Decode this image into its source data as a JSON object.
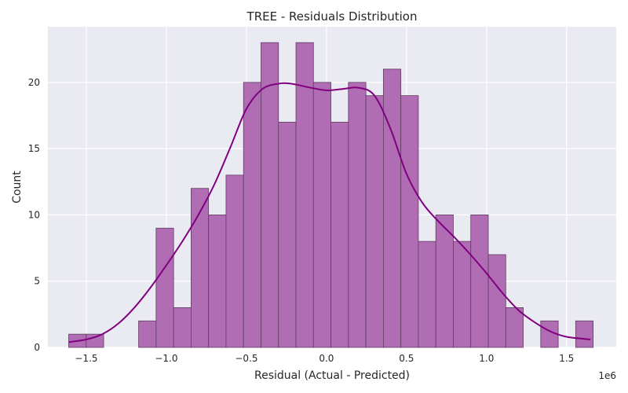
{
  "chart_data": {
    "type": "bar",
    "title": "TREE - Residuals Distribution",
    "xlabel": "Residual (Actual - Predicted)",
    "ylabel": "Count",
    "x_offset_label": "1e6",
    "xlim": [
      -1.74,
      1.81
    ],
    "ylim": [
      0,
      24.2
    ],
    "xticks": [
      -1.5,
      -1.0,
      -0.5,
      0.0,
      0.5,
      1.0,
      1.5
    ],
    "xtick_labels": [
      "−1.5",
      "−1.0",
      "−0.5",
      "0.0",
      "0.5",
      "1.0",
      "1.5"
    ],
    "yticks": [
      0,
      5,
      10,
      15,
      20
    ],
    "ytick_labels": [
      "0",
      "5",
      "10",
      "15",
      "20"
    ],
    "grid": true,
    "background": "#EAEAF2",
    "bar_color": "#B06DB3",
    "bar_edge": "#5E3E60",
    "kde_color": "#800080",
    "bin_start": -1.61,
    "bin_width": 0.1092,
    "counts": [
      1,
      1,
      0,
      0,
      2,
      9,
      3,
      12,
      10,
      13,
      20,
      23,
      17,
      23,
      20,
      17,
      20,
      19,
      21,
      19,
      8,
      10,
      8,
      10,
      7,
      3,
      0,
      2,
      0,
      2
    ],
    "kde": {
      "x": [
        -1.61,
        -1.5,
        -1.4,
        -1.3,
        -1.2,
        -1.1,
        -1.0,
        -0.9,
        -0.8,
        -0.7,
        -0.6,
        -0.5,
        -0.4,
        -0.3,
        -0.22,
        -0.1,
        0.0,
        0.1,
        0.2,
        0.3,
        0.4,
        0.5,
        0.6,
        0.7,
        0.8,
        0.9,
        1.0,
        1.1,
        1.2,
        1.3,
        1.4,
        1.5,
        1.65
      ],
      "y": [
        0.4,
        0.6,
        1.0,
        1.8,
        3.0,
        4.5,
        6.2,
        8.0,
        10.0,
        12.3,
        15.1,
        18.0,
        19.5,
        19.9,
        19.9,
        19.6,
        19.4,
        19.5,
        19.6,
        19.0,
        16.5,
        13.1,
        10.9,
        9.5,
        8.3,
        7.0,
        5.6,
        4.1,
        2.8,
        1.9,
        1.2,
        0.8,
        0.6
      ]
    }
  }
}
